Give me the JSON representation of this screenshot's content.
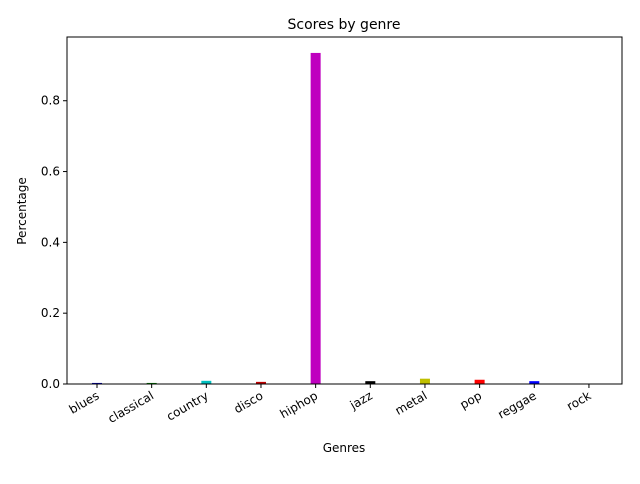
{
  "chart_data": {
    "type": "bar",
    "title": "Scores by genre",
    "xlabel": "Genres",
    "ylabel": "Percentage",
    "categories": [
      "blues",
      "classical",
      "country",
      "disco",
      "hiphop",
      "jazz",
      "metal",
      "pop",
      "reggae",
      "rock"
    ],
    "values": [
      0.003,
      0.003,
      0.009,
      0.006,
      0.935,
      0.008,
      0.015,
      0.012,
      0.008,
      0.001
    ],
    "colors": [
      "#0000bf",
      "#008000",
      "#00bfbf",
      "#bf0000",
      "#bf00bf",
      "#000000",
      "#bfbf00",
      "#ff0000",
      "#0000ff",
      "#00ff00"
    ],
    "ylim": [
      0,
      0.98
    ],
    "yticks": [
      0.0,
      0.2,
      0.4,
      0.6,
      0.8
    ],
    "ytick_labels": [
      "0.0",
      "0.2",
      "0.4",
      "0.6",
      "0.8"
    ],
    "grid": false,
    "legend": "none"
  }
}
